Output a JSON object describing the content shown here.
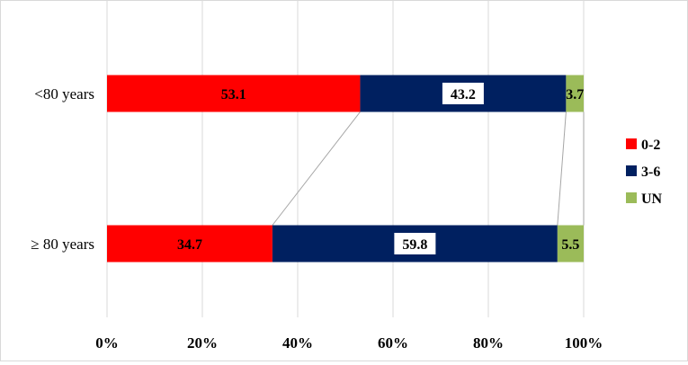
{
  "chart_data": {
    "type": "bar",
    "orientation": "horizontal",
    "stacked": "percent",
    "categories": [
      "<80 years",
      "≥ 80 years"
    ],
    "series": [
      {
        "name": "0-2",
        "values": [
          53.1,
          34.7
        ],
        "color": "#ff0000",
        "label_box": false
      },
      {
        "name": "3-6",
        "values": [
          43.2,
          59.8
        ],
        "color": "#002060",
        "label_box": true
      },
      {
        "name": "UN",
        "values": [
          3.7,
          5.5
        ],
        "color": "#9bbb59",
        "label_box": false
      }
    ],
    "data_labels": [
      [
        "53.1",
        "43.2",
        "3.7"
      ],
      [
        "34.7",
        "59.8",
        "5.5"
      ]
    ],
    "xlim": [
      0,
      100
    ],
    "xticks": [
      "0%",
      "20%",
      "40%",
      "60%",
      "80%",
      "100%"
    ],
    "grid": "vertical",
    "series_lines": true,
    "legend_position": "right",
    "title": "",
    "xlabel": "",
    "ylabel": ""
  }
}
